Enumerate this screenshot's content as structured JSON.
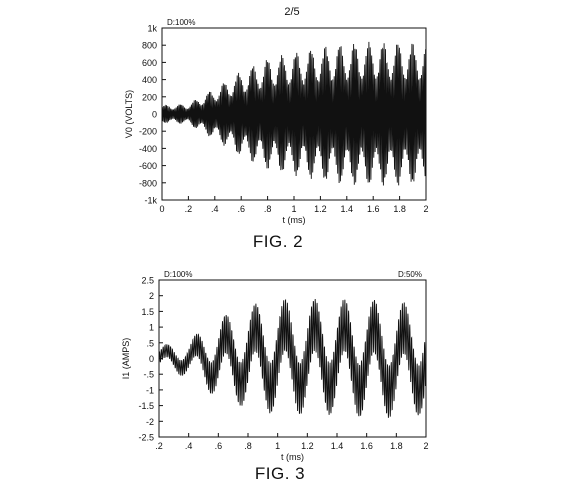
{
  "page_number": "2/5",
  "figures": [
    {
      "caption": "FIG. 2"
    },
    {
      "caption": "FIG. 3"
    }
  ],
  "chart_data": [
    {
      "type": "line",
      "title": "",
      "annotations": [
        "D:100%"
      ],
      "xlabel": "t (ms)",
      "ylabel": "V0 (VOLTS)",
      "xlim": [
        0,
        2
      ],
      "ylim": [
        -1000,
        1000
      ],
      "x_ticks": [
        "0",
        ".2",
        ".4",
        ".6",
        ".8",
        "1",
        "1.2",
        "1.4",
        "1.6",
        "1.8",
        "2"
      ],
      "y_ticks": [
        "1k",
        "800",
        "600",
        "400",
        "200",
        "0",
        "-200",
        "-400",
        "-600",
        "-800",
        "-1k"
      ],
      "grid": false,
      "series": [
        {
          "description": "oscillation at 0.01 ms period, envelope in volts",
          "x_envelope": [
            0,
            0.2,
            0.4,
            0.6,
            0.8,
            1.0,
            1.2,
            1.4,
            1.6,
            1.8,
            2.0
          ],
          "upper": [
            100,
            120,
            300,
            500,
            650,
            720,
            780,
            830,
            840,
            840,
            820
          ],
          "lower": [
            -100,
            -120,
            -300,
            -500,
            -650,
            -720,
            -780,
            -830,
            -840,
            -840,
            -820
          ]
        }
      ],
      "color": "#111111"
    },
    {
      "type": "line",
      "title": "",
      "annotations": [
        "D:100%",
        "D:50%"
      ],
      "xlabel": "t (ms)",
      "ylabel": "I1 (AMPS)",
      "xlim": [
        0.2,
        2
      ],
      "ylim": [
        -2.5,
        2.5
      ],
      "x_ticks": [
        ".2",
        ".4",
        ".6",
        ".8",
        "1",
        "1.2",
        "1.4",
        "1.6",
        "1.8",
        "2"
      ],
      "y_ticks": [
        "2.5",
        "2",
        "1.5",
        "1",
        ".5",
        "0",
        "-.5",
        "-1",
        "-1.5",
        "-2",
        "-2.5"
      ],
      "grid": false,
      "series": [
        {
          "description": "high-frequency oscillation with slow beat envelope, amps",
          "x_envelope": [
            0.2,
            0.4,
            0.6,
            0.8,
            1.0,
            1.2,
            1.4,
            1.6,
            1.8,
            2.0
          ],
          "upper": [
            0.4,
            0.6,
            1.3,
            1.7,
            1.9,
            1.9,
            1.9,
            1.9,
            1.8,
            1.8
          ],
          "lower": [
            -0.4,
            -0.6,
            -1.3,
            -1.6,
            -1.8,
            -1.8,
            -1.8,
            -1.9,
            -1.9,
            -1.8
          ]
        }
      ],
      "color": "#111111"
    }
  ]
}
